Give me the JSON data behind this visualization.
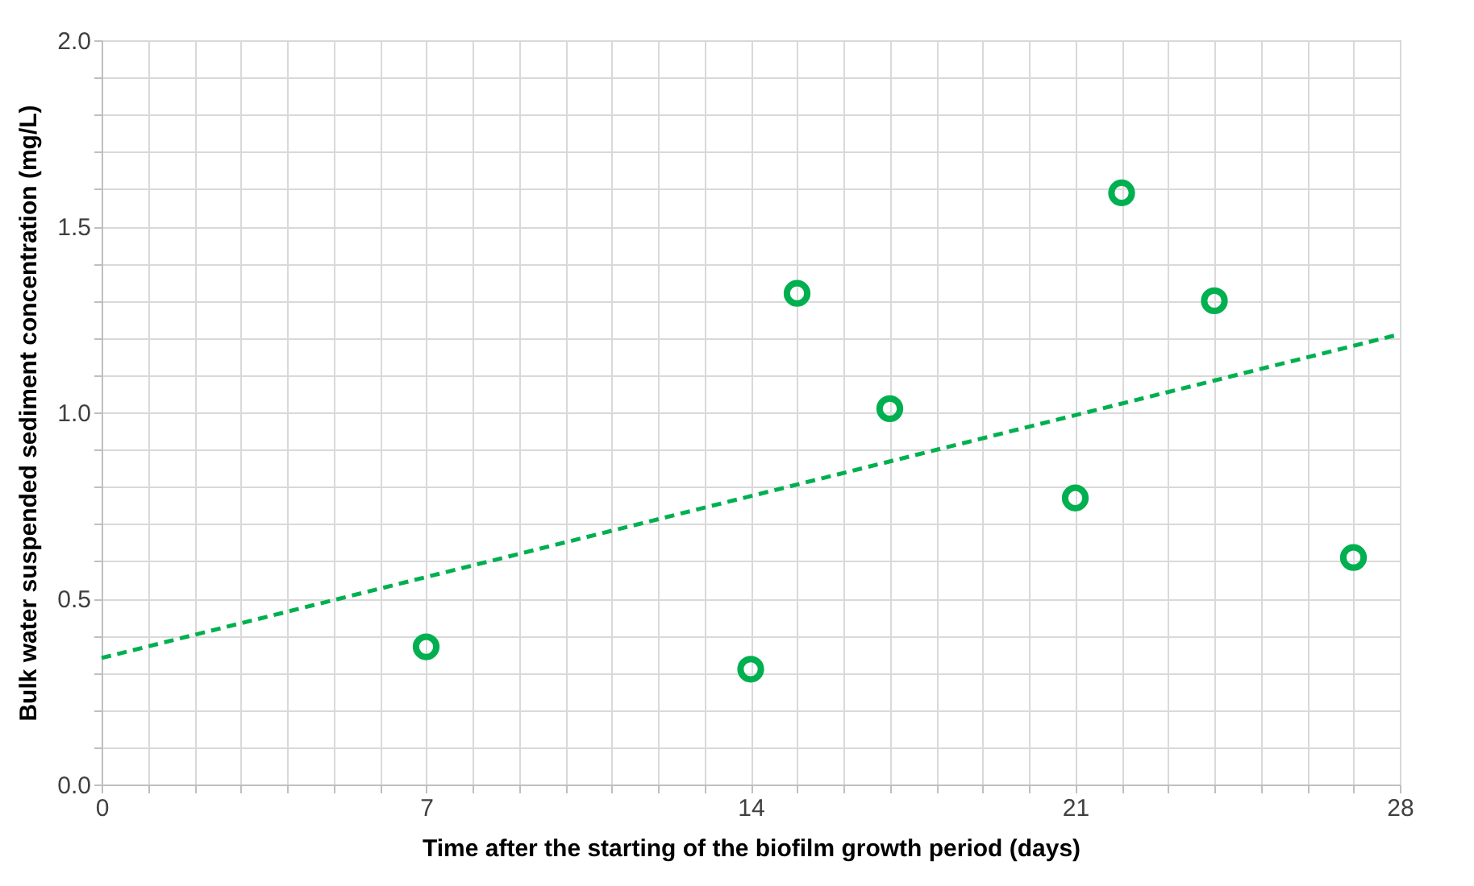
{
  "chart_data": {
    "type": "scatter",
    "xlabel": "Time after the starting of the biofilm growth period (days)",
    "ylabel": "Bulk water suspended sediment concentration (mg/L)",
    "xlim": [
      0,
      28
    ],
    "ylim": [
      0,
      2
    ],
    "xticks": [
      0,
      {
        "value": 1,
        "label": null
      },
      {
        "value": 2,
        "label": null
      },
      {
        "value": 3,
        "label": null
      },
      {
        "value": 4,
        "label": null
      },
      {
        "value": 5,
        "label": null
      },
      {
        "value": 6,
        "label": null
      },
      7,
      {
        "value": 8,
        "label": null
      },
      {
        "value": 9,
        "label": null
      },
      {
        "value": 10,
        "label": null
      },
      {
        "value": 11,
        "label": null
      },
      {
        "value": 12,
        "label": null
      },
      {
        "value": 13,
        "label": null
      },
      14,
      {
        "value": 15,
        "label": null
      },
      {
        "value": 16,
        "label": null
      },
      {
        "value": 17,
        "label": null
      },
      {
        "value": 18,
        "label": null
      },
      {
        "value": 19,
        "label": null
      },
      {
        "value": 20,
        "label": null
      },
      21,
      {
        "value": 22,
        "label": null
      },
      {
        "value": 23,
        "label": null
      },
      {
        "value": 24,
        "label": null
      },
      {
        "value": 25,
        "label": null
      },
      {
        "value": 26,
        "label": null
      },
      {
        "value": 27,
        "label": null
      },
      28
    ],
    "yticks": [
      {
        "value": 0,
        "label": "0.0"
      },
      {
        "value": 0.1,
        "label": null
      },
      {
        "value": 0.2,
        "label": null
      },
      {
        "value": 0.3,
        "label": null
      },
      {
        "value": 0.4,
        "label": null
      },
      {
        "value": 0.5,
        "label": "0.5"
      },
      {
        "value": 0.6,
        "label": null
      },
      {
        "value": 0.7,
        "label": null
      },
      {
        "value": 0.8,
        "label": null
      },
      {
        "value": 0.9,
        "label": null
      },
      {
        "value": 1,
        "label": "1.0"
      },
      {
        "value": 1.1,
        "label": null
      },
      {
        "value": 1.2,
        "label": null
      },
      {
        "value": 1.3,
        "label": null
      },
      {
        "value": 1.4,
        "label": null
      },
      {
        "value": 1.5,
        "label": "1.5"
      },
      {
        "value": 1.6,
        "label": null
      },
      {
        "value": 1.7,
        "label": null
      },
      {
        "value": 1.8,
        "label": null
      },
      {
        "value": 1.9,
        "label": null
      },
      {
        "value": 2,
        "label": "2.0"
      }
    ],
    "grid": true,
    "marker": "circle",
    "series": [
      {
        "color": "#00b050",
        "x": [
          7,
          14,
          15,
          17,
          21,
          22,
          24,
          27
        ],
        "values": [
          0.37,
          0.31,
          1.32,
          1.01,
          0.77,
          1.59,
          1.3,
          0.61
        ]
      },
      {
        "type": "line",
        "color": "#00b050",
        "line_style": "dashed",
        "marker": "none",
        "x": [
          0,
          28
        ],
        "values": [
          0.34,
          1.21
        ]
      }
    ]
  }
}
